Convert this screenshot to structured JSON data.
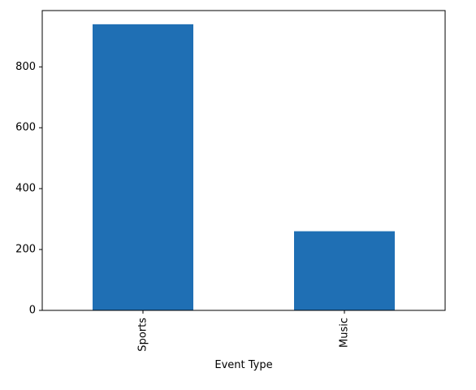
{
  "chart_data": {
    "type": "bar",
    "title": "",
    "xlabel": "Event Type",
    "ylabel": "",
    "categories": [
      "Sports",
      "Music"
    ],
    "values": [
      940,
      260
    ],
    "ylim": [
      0,
      985
    ],
    "yticks": [
      0,
      200,
      400,
      600,
      800
    ],
    "ytick_labels": [
      "0",
      "200",
      "400",
      "600",
      "800"
    ],
    "grid": false,
    "legend": "none",
    "bar_color": "#1f6fb4",
    "x_tick_rotation_deg": 90
  }
}
